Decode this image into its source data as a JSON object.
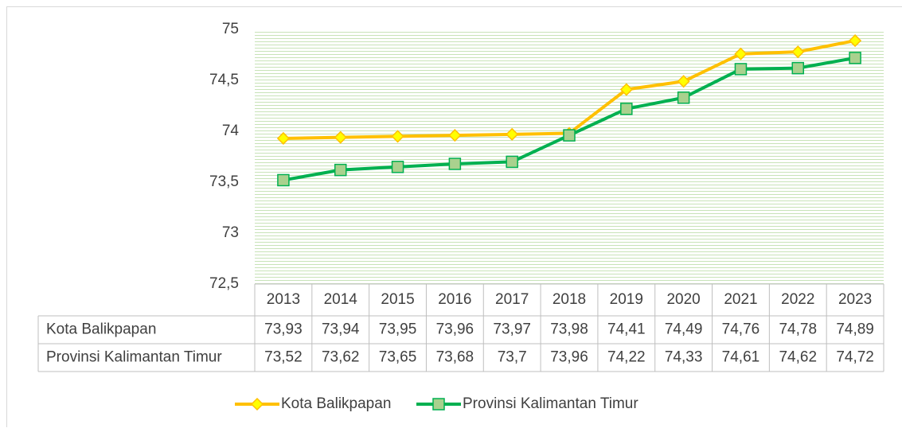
{
  "chart_data": {
    "type": "line",
    "categories": [
      "2013",
      "2014",
      "2015",
      "2016",
      "2017",
      "2018",
      "2019",
      "2020",
      "2021",
      "2022",
      "2023"
    ],
    "series": [
      {
        "name": "Kota Balikpapan",
        "color": "#FFC000",
        "marker": "diamond",
        "marker_color": "#FFFF00",
        "values": [
          73.93,
          73.94,
          73.95,
          73.96,
          73.97,
          73.98,
          74.41,
          74.49,
          74.76,
          74.78,
          74.89
        ],
        "value_labels": [
          "73,93",
          "73,94",
          "73,95",
          "73,96",
          "73,97",
          "73,98",
          "74,41",
          "74,49",
          "74,76",
          "74,78",
          "74,89"
        ]
      },
      {
        "name": "Provinsi Kalimantan Timur",
        "color": "#00B050",
        "marker": "square",
        "marker_color": "#A9D18E",
        "values": [
          73.52,
          73.62,
          73.65,
          73.68,
          73.7,
          73.96,
          74.22,
          74.33,
          74.61,
          74.62,
          74.72
        ],
        "value_labels": [
          "73,52",
          "73,62",
          "73,65",
          "73,68",
          "73,7",
          "73,96",
          "74,22",
          "74,33",
          "74,61",
          "74,62",
          "74,72"
        ]
      }
    ],
    "ylim": [
      72.5,
      75
    ],
    "yticks": [
      {
        "value": 72.5,
        "label": "72,5"
      },
      73,
      {
        "value": 73.5,
        "label": "73,5"
      },
      74,
      {
        "value": 74.5,
        "label": "74,5"
      },
      75
    ],
    "grid": false,
    "legend": "bottom",
    "data_table": true
  }
}
